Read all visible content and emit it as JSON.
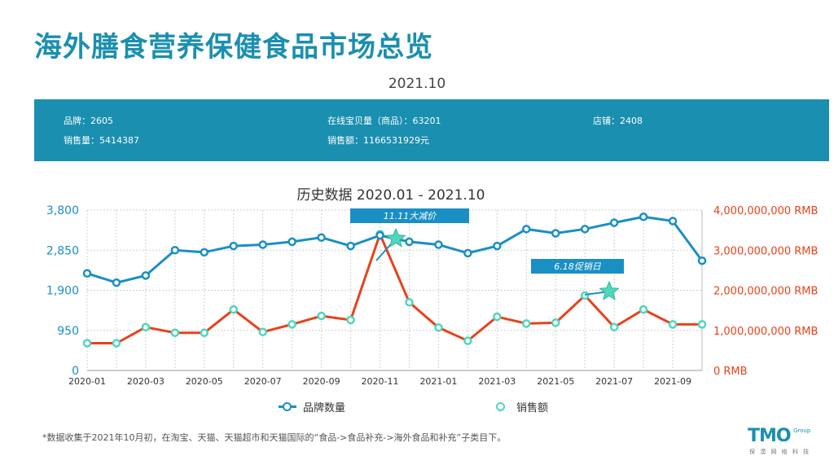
{
  "page_title": "海外膳食营养保健食品市场总览",
  "period": "2021.10",
  "summary": {
    "brands_label": "品牌：",
    "brands_value": "2605",
    "listings_label": "在线宝贝量（商品）：",
    "listings_value": "63201",
    "stores_label": "店铺：",
    "stores_value": "2408",
    "sales_volume_label": "销售量：",
    "sales_volume_value": "5414387",
    "sales_amount_label": "销售额：",
    "sales_amount_value": "1166531929元"
  },
  "chart_data": {
    "type": "line",
    "title": "历史数据 2020.01 - 2021.10",
    "x": [
      "2020-01",
      "2020-02",
      "2020-03",
      "2020-04",
      "2020-05",
      "2020-06",
      "2020-07",
      "2020-08",
      "2020-09",
      "2020-10",
      "2020-11",
      "2020-12",
      "2021-01",
      "2021-02",
      "2021-03",
      "2021-04",
      "2021-05",
      "2021-06",
      "2021-07",
      "2021-08",
      "2021-09",
      "2021-10"
    ],
    "x_tick_labels": [
      "2020-01",
      "2020-03",
      "2020-05",
      "2020-07",
      "2020-09",
      "2020-11",
      "2021-01",
      "2021-03",
      "2021-05",
      "2021-07",
      "2021-09"
    ],
    "y_left_ticks": [
      "0",
      "950",
      "1,900",
      "2,850",
      "3,800"
    ],
    "y_left_range": [
      0,
      3800
    ],
    "y_right_ticks": [
      "0 RMB",
      "1,000,000,000 RMB",
      "2,000,000,000 RMB",
      "3,000,000,000 RMB",
      "4,000,000,000 RMB"
    ],
    "y_right_range": [
      0,
      4000000000
    ],
    "grid": true,
    "series": [
      {
        "name": "品牌数量",
        "axis": "left",
        "color": "#1a8fc4",
        "values": [
          2300,
          2080,
          2250,
          2850,
          2800,
          2950,
          2980,
          3050,
          3150,
          2950,
          3200,
          3050,
          2980,
          2780,
          2950,
          3350,
          3250,
          3350,
          3500,
          3640,
          3540,
          2600
        ]
      },
      {
        "name": "销售额",
        "axis": "right",
        "color": "#e8421a",
        "marker_color": "#4fd6bd",
        "values": [
          680000000,
          680000000,
          1080000000,
          940000000,
          940000000,
          1520000000,
          960000000,
          1150000000,
          1360000000,
          1260000000,
          3400000000,
          1700000000,
          1070000000,
          740000000,
          1340000000,
          1170000000,
          1190000000,
          1870000000,
          1080000000,
          1520000000,
          1150000000,
          1150000000
        ]
      }
    ],
    "annotations": [
      {
        "text": "11.11大减价",
        "x": "2020-11"
      },
      {
        "text": "6.18促销日",
        "x": "2021-06"
      }
    ]
  },
  "footnote": "*数据收集于2021年10月初，在淘宝、天猫、天猫超市和天猫国际的“食品->食品补充->海外食品和补充”子类目下。",
  "logo": {
    "main": "TMO",
    "sup": "Group",
    "sub": "探 漠 网 络 科 技"
  }
}
